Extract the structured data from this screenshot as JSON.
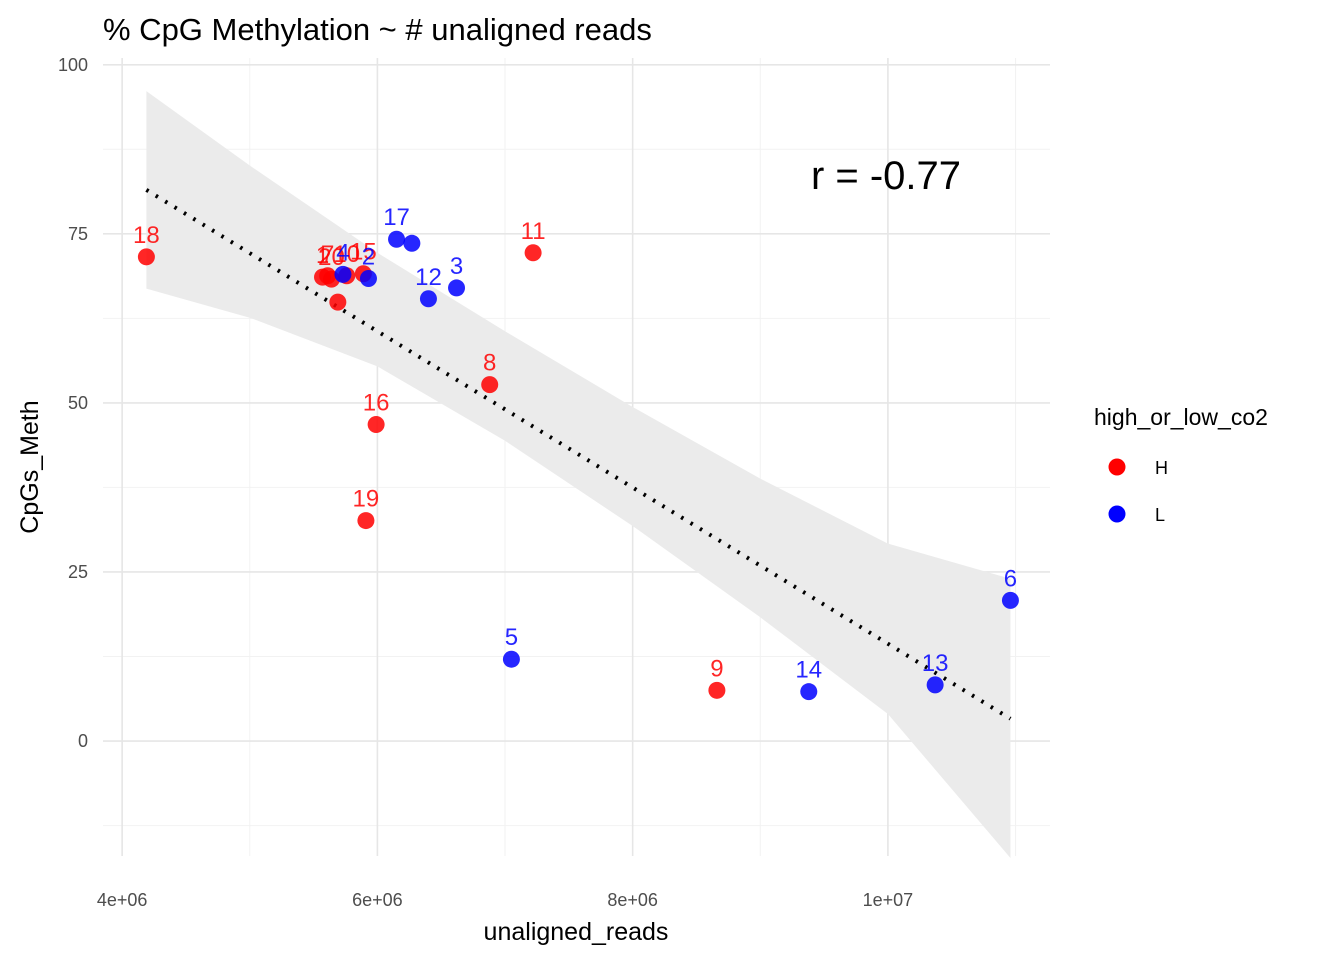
{
  "chart_data": {
    "type": "scatter",
    "title": "% CpG Methylation ~ # unaligned reads",
    "xlabel": "unaligned_reads",
    "ylabel": "CpGs_Meth",
    "xlim": [
      3850000,
      11270000
    ],
    "ylim": [
      -17,
      101
    ],
    "x_ticks": [
      4000000,
      6000000,
      8000000,
      10000000
    ],
    "x_tick_labels": [
      "4e+06",
      "6e+06",
      "8e+06",
      "1e+07"
    ],
    "y_ticks": [
      0,
      25,
      50,
      75,
      100
    ],
    "y_tick_labels": [
      "0",
      "25",
      "50",
      "75",
      "100"
    ],
    "grid": true,
    "legend": {
      "title": "high_or_low_co2",
      "position": "right",
      "entries": [
        {
          "label": "H",
          "color": "#ff0000"
        },
        {
          "label": "L",
          "color": "#0000ff"
        }
      ]
    },
    "annotation": "r = -0.77",
    "points": [
      {
        "label": "18",
        "x": 4190000,
        "y": 71.6,
        "group": "H"
      },
      {
        "label": "1",
        "x": 5570000,
        "y": 68.6,
        "group": "H"
      },
      {
        "label": "20",
        "x": 5640000,
        "y": 68.3,
        "group": "H"
      },
      {
        "label": "7",
        "x": 5610000,
        "y": 68.8,
        "group": "H"
      },
      {
        "label": "10",
        "x": 5760000,
        "y": 68.8,
        "group": "H"
      },
      {
        "label": "4",
        "x": 5730000,
        "y": 69.0,
        "group": "L"
      },
      {
        "label": "15",
        "x": 5890000,
        "y": 69.1,
        "group": "H"
      },
      {
        "label": "2",
        "x": 5930000,
        "y": 68.4,
        "group": "L"
      },
      {
        "label": "",
        "x": 5690000,
        "y": 64.9,
        "group": "H"
      },
      {
        "label": "17",
        "x": 6150000,
        "y": 74.2,
        "group": "L"
      },
      {
        "label": "",
        "x": 6270000,
        "y": 73.6,
        "group": "L"
      },
      {
        "label": "12",
        "x": 6400000,
        "y": 65.4,
        "group": "L"
      },
      {
        "label": "3",
        "x": 6620000,
        "y": 67.0,
        "group": "L"
      },
      {
        "label": "11",
        "x": 7220000,
        "y": 72.2,
        "group": "H"
      },
      {
        "label": "8",
        "x": 6880000,
        "y": 52.7,
        "group": "H"
      },
      {
        "label": "16",
        "x": 5990000,
        "y": 46.8,
        "group": "H"
      },
      {
        "label": "19",
        "x": 5910000,
        "y": 32.6,
        "group": "H"
      },
      {
        "label": "5",
        "x": 7050000,
        "y": 12.1,
        "group": "L"
      },
      {
        "label": "9",
        "x": 8660000,
        "y": 7.5,
        "group": "H"
      },
      {
        "label": "14",
        "x": 9380000,
        "y": 7.3,
        "group": "L"
      },
      {
        "label": "13",
        "x": 10370000,
        "y": 8.3,
        "group": "L"
      },
      {
        "label": "6",
        "x": 10960000,
        "y": 20.8,
        "group": "L"
      }
    ],
    "fit_line": {
      "x": [
        4190000,
        10960000
      ],
      "y": [
        81.5,
        3.3
      ]
    },
    "confidence_band": {
      "x": [
        4190000,
        5000000,
        6000000,
        7000000,
        8000000,
        9000000,
        10000000,
        10960000
      ],
      "upper": [
        96.1,
        85.1,
        72.2,
        60.6,
        49.4,
        38.8,
        29.2,
        24.0
      ],
      "lower": [
        66.9,
        62.6,
        55.4,
        44.4,
        31.8,
        18.3,
        4.0,
        -17.3
      ]
    }
  }
}
